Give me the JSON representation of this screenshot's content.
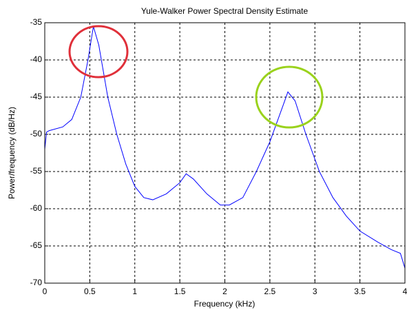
{
  "chart_data": {
    "type": "line",
    "title": "Yule-Walker Power Spectral Density Estimate",
    "x_label": "Frequency (kHz)",
    "y_label": "Power/frequency (dB/Hz)",
    "x": [
      0,
      0.02,
      0.05,
      0.2,
      0.3,
      0.4,
      0.48,
      0.54,
      0.6,
      0.7,
      0.8,
      0.9,
      1.0,
      1.1,
      1.2,
      1.35,
      1.5,
      1.57,
      1.65,
      1.8,
      1.95,
      2.05,
      2.2,
      2.35,
      2.5,
      2.65,
      2.7,
      2.78,
      2.9,
      3.05,
      3.2,
      3.35,
      3.5,
      3.7,
      3.85,
      3.95,
      4.0
    ],
    "values": [
      -52,
      -49.7,
      -49.5,
      -49,
      -48,
      -45,
      -40,
      -35.5,
      -38,
      -45,
      -50,
      -54,
      -57,
      -58.5,
      -58.8,
      -58,
      -56.5,
      -55.3,
      -56,
      -58,
      -59.5,
      -59.5,
      -58.5,
      -55,
      -51,
      -46,
      -44.3,
      -45.5,
      -50,
      -55,
      -58.5,
      -61,
      -63,
      -64.5,
      -65.5,
      -66,
      -68
    ],
    "color": "#0000ff",
    "xlim": [
      0,
      4
    ],
    "xticks": [
      0,
      0.5,
      1,
      1.5,
      2,
      2.5,
      3,
      3.5,
      4
    ],
    "ylim": [
      -70,
      -35
    ],
    "yticks": [
      -70,
      -65,
      -60,
      -55,
      -50,
      -45,
      -40,
      -35
    ],
    "grid": true
  }
}
